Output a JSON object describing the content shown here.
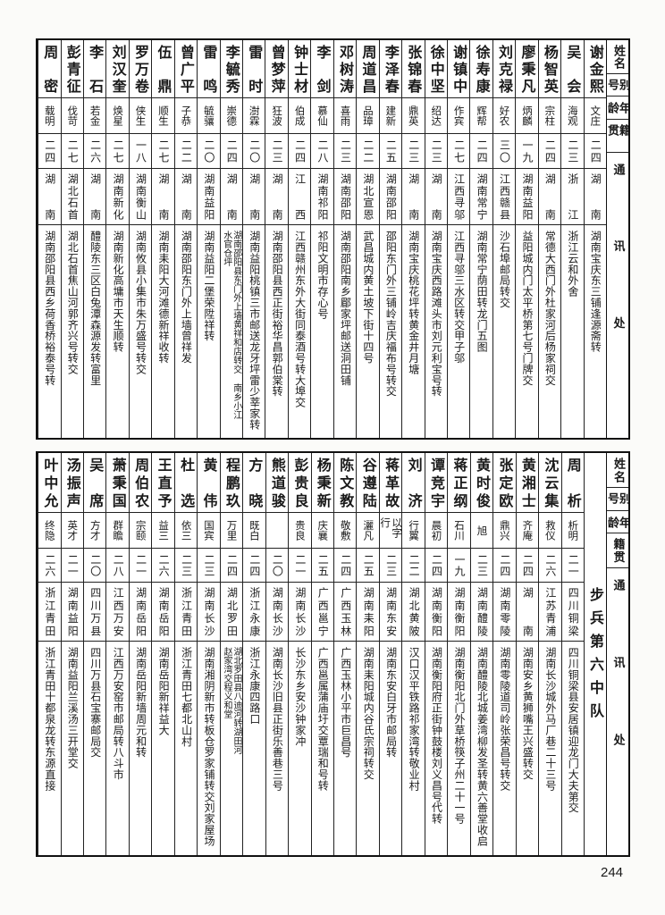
{
  "headers": [
    "姓名",
    "别号",
    "年龄",
    "籍贯",
    "通讯处"
  ],
  "top_table": {
    "rows": [
      {
        "name": "谢金熙",
        "alias": "文庄",
        "age": "二四",
        "native": "湖南",
        "address": [
          "湖南宝庆东三铺逢源斋转"
        ]
      },
      {
        "name": "吴会",
        "alias": "海观",
        "age": "二三",
        "native": "浙江",
        "address": [
          "浙江云和外舍"
        ]
      },
      {
        "name": "杨智英",
        "alias": "宗柱",
        "age": "二四",
        "native": "湖南",
        "address": [
          "常德大西门外杜家河后杨家祠交"
        ]
      },
      {
        "name": "廖秉凡",
        "alias": "炳麟",
        "age": "一九",
        "native": "湖南益阳",
        "address": [
          "益阳城内门太平桥第七号门牌交"
        ]
      },
      {
        "name": "刘克禄",
        "alias": "好农",
        "age": "三〇",
        "native": "江西赣县",
        "address": [
          "沙石埠邮局转交"
        ]
      },
      {
        "name": "徐寿康",
        "alias": "辉帮",
        "age": "二四",
        "native": "湖南常宁",
        "address": [
          "湖南常宁荫田转龙门五图"
        ]
      },
      {
        "name": "谢镇中",
        "alias": "作宾",
        "age": "二七",
        "native": "江西寻邬",
        "address": [
          "江西寻邬三水区转交甲子邬"
        ]
      },
      {
        "name": "徐中坚",
        "alias": "绍达",
        "age": "二三",
        "native": "湖南",
        "address": [
          "湖南宝庆西路滩头市刘元利宝号转"
        ]
      },
      {
        "name": "张锦春",
        "alias": "鼎英",
        "age": "二三",
        "native": "湖南",
        "address": [
          "湖南宝庆桃花坪转黄金井月塘"
        ]
      },
      {
        "name": "李泽春",
        "alias": "建新",
        "age": "二五",
        "native": "湖南邵阳",
        "address": [
          "邵阳东门外三铺岭吉庆福布号转交"
        ]
      },
      {
        "name": "周道昌",
        "alias": "品璋",
        "age": "二二",
        "native": "湖北宣恩",
        "address": [
          "武昌城内黄土坡下街十四号"
        ]
      },
      {
        "name": "邓树涛",
        "alias": "喜雨",
        "age": "二三",
        "native": "湖南邵阳",
        "address": [
          "湖南邵阳南乡郿家坪邮送洞田铺"
        ]
      },
      {
        "name": "李剑",
        "alias": "慕仙",
        "age": "二八",
        "native": "湖南祁阳",
        "address": [
          "祁阳文明市存心号"
        ]
      },
      {
        "name": "钟士材",
        "alias": "伯成",
        "age": "二四",
        "native": "江西",
        "address": [
          "江西赣州东外大街同泰酒号转大埠交"
        ]
      },
      {
        "name": "曾梦萍",
        "alias": "狂波",
        "age": "二三",
        "native": "湖南",
        "address": [
          "湖南邵阳县西正街裕华昌郭伯棠转"
        ]
      },
      {
        "name": "雷时",
        "alias": "澍霖",
        "age": "二〇",
        "native": "湖南",
        "address": [
          "湖南益阳桃镇三市邮送龙牙坪雷少莘家转"
        ]
      },
      {
        "name": "李毓秀",
        "alias": "崇德",
        "age": "二四",
        "native": "湖南",
        "address": [
          "湖南邵阳县东门外上墙黄祥和店转交 南乡小江",
          "水官仓坪"
        ]
      },
      {
        "name": "雷鸣",
        "alias": "毓骧",
        "age": "二〇",
        "native": "湖南益阳",
        "address": [
          "湖南益阳二堡荣陞祥转"
        ]
      },
      {
        "name": "曾广平",
        "alias": "子恭",
        "age": "二二",
        "native": "湖南",
        "address": [
          "湖南邵阳东门外上墙曾祥发"
        ]
      },
      {
        "name": "伍鼎",
        "alias": "顺生",
        "age": "二七",
        "native": "湖南",
        "address": [
          "湖南耒阳大河滩德新祥收转"
        ]
      },
      {
        "name": "罗万卷",
        "alias": "侠生",
        "age": "一八",
        "native": "湖南衡山",
        "address": [
          "湖南攸县小集市朱万盛号转交"
        ]
      },
      {
        "name": "刘汉奎",
        "alias": "焕星",
        "age": "二七",
        "native": "湖南新化",
        "address": [
          "湖南新化高墉市天生顺转"
        ]
      },
      {
        "name": "李石",
        "alias": "若金",
        "age": "二六",
        "native": "湖南",
        "address": [
          "醴陵东三区白兔潭森源发转富里"
        ]
      },
      {
        "name": "彭青征",
        "alias": "伐苛",
        "age": "二七",
        "native": "湖北石首",
        "address": [
          "湖北石首焦山河郭齐兴号转交"
        ]
      },
      {
        "name": "周密",
        "alias": "载明",
        "age": "二四",
        "native": "湖南",
        "address": [
          "湖南邵阳县西乡荷香桥裕泰号转"
        ]
      }
    ]
  },
  "bottom_table": {
    "unit_label": "步兵第六中队",
    "rows": [
      {
        "name": "周析",
        "alias": "析明",
        "age": "二一",
        "native": "四川铜梁",
        "address": [
          "四川铜梁县安居镇迎龙门大夫第交"
        ]
      },
      {
        "name": "沈云集",
        "alias": "救仪",
        "age": "二六",
        "native": "江苏青浦",
        "address": [
          "湖南长沙城外马厂巷二十三号"
        ]
      },
      {
        "name": "黄湘士",
        "alias": "齐庵",
        "age": "二四",
        "native": "湖南",
        "address": [
          "湖南安乡黄狮嘴王兴盛转交"
        ]
      },
      {
        "name": "张定欧",
        "alias": "鼎兴",
        "age": "二四",
        "native": "湖南零陵",
        "address": [
          "湖南零陵道司岭张荣昌号转交"
        ]
      },
      {
        "name": "黄时俊",
        "alias": "旭",
        "age": "二三",
        "native": "湖南醴陵",
        "address": [
          "湖南醴陵北城姜湾柳发圣转黄六善堂收启"
        ]
      },
      {
        "name": "蒋正纲",
        "alias": "石川",
        "age": "一九",
        "native": "湖南衡阳",
        "address": [
          "湖南衡阳北门外草桥筷子州二十一号"
        ]
      },
      {
        "name": "谭竞宇",
        "alias": "晨初",
        "age": "二四",
        "native": "湖南衡阳",
        "address": [
          "湖南衡阳府正街钟鼓楼刘义昌号代转"
        ]
      },
      {
        "name": "刘济",
        "alias": "行翼",
        "age": "二二",
        "native": "湖北黄陂",
        "address": [
          "汉口汉平铁路祁家湾转敬业村"
        ]
      },
      {
        "name": "蒋革故",
        "alias": "以字行",
        "age": "二三",
        "native": "湖南东安",
        "address": [
          "湖南东安白牙市邮局转"
        ]
      },
      {
        "name": "谷遵陆",
        "alias": "灑凡",
        "age": "二五",
        "native": "湖南耒阳",
        "address": [
          "湖南耒阳城内谷氏宗祠转交"
        ]
      },
      {
        "name": "陈文教",
        "alias": "敬敷",
        "age": "二四",
        "native": "广西玉林",
        "address": [
          "广西玉林小平市巨昌号"
        ]
      },
      {
        "name": "杨秉新",
        "alias": "庆襄",
        "age": "二五",
        "native": "广西邕宁",
        "address": [
          "广西邕属蒲庙圩交覃瑞和号转"
        ]
      },
      {
        "name": "彭贵良",
        "alias": "贵良",
        "age": "二一",
        "native": "湖南长沙",
        "address": [
          "长沙东乡安沙钟家冲"
        ]
      },
      {
        "name": "熊道骏",
        "alias": "",
        "age": "二〇",
        "native": "湖南长沙",
        "address": [
          "湖南长沙旧县正街乐善巷三号"
        ]
      },
      {
        "name": "方晓",
        "alias": "既白",
        "age": "二四",
        "native": "浙江永康",
        "address": [
          "浙江永康四路口"
        ]
      },
      {
        "name": "程鹏玖",
        "alias": "万里",
        "age": "二四",
        "native": "湖北罗田",
        "address": [
          "湖北罗田县八迪河转湖田河",
          "赵家湾交程义和堂"
        ]
      },
      {
        "name": "黄伟",
        "alias": "国宾",
        "age": "二三",
        "native": "湖南长沙",
        "address": [
          "湖南湘阴新市转板仓罗家铺转交刘家屋场"
        ]
      },
      {
        "name": "杜选",
        "alias": "依三",
        "age": "二三",
        "native": "浙江青田",
        "address": [
          "浙江青田七都北山村"
        ]
      },
      {
        "name": "王直予",
        "alias": "益三",
        "age": "二六",
        "native": "湖南岳阳",
        "address": [
          "湖南岳阳新祥益大"
        ]
      },
      {
        "name": "周伯农",
        "alias": "宗颐",
        "age": "二一",
        "native": "湖南岳阳",
        "address": [
          "湖南岳阳新墙周元和转"
        ]
      },
      {
        "name": "萧秉国",
        "alias": "群瞻",
        "age": "二八",
        "native": "江西万安",
        "address": [
          "江西万安窑市邮局转八斗市"
        ]
      },
      {
        "name": "吴席",
        "alias": "方才",
        "age": "二〇",
        "native": "四川万县",
        "address": [
          "四川万县石宝寨邮局交"
        ]
      },
      {
        "name": "汤振声",
        "alias": "英才",
        "age": "二一",
        "native": "湖南益阳",
        "address": [
          "湖南益阳兰溪汤三开堂交"
        ]
      },
      {
        "name": "叶中允",
        "alias": "终隐",
        "age": "二六",
        "native": "浙江青田",
        "address": [
          "浙江青田十都泉龙转东源直接"
        ]
      }
    ]
  },
  "page_number": "244"
}
